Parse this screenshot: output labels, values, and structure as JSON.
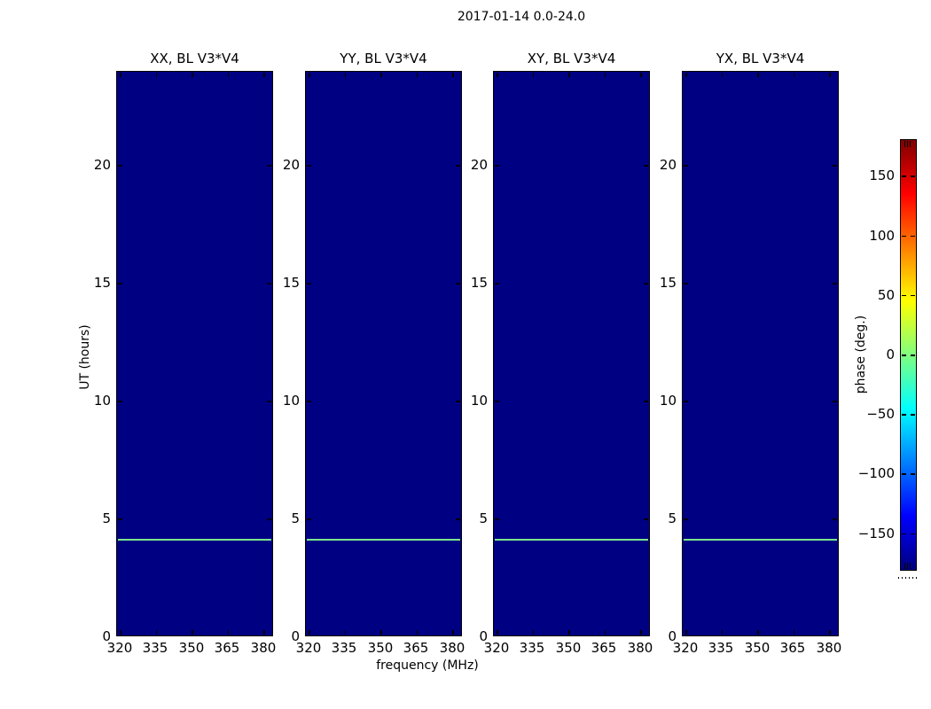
{
  "figure_title": "2017-01-14 0.0-24.0",
  "panels": [
    {
      "title": "XX, BL V3*V4"
    },
    {
      "title": "YY, BL V3*V4"
    },
    {
      "title": "XY, BL V3*V4"
    },
    {
      "title": "YX, BL V3*V4"
    }
  ],
  "axes": {
    "xlabel": "frequency (MHz)",
    "ylabel": "UT (hours)",
    "x_tick_labels": [
      "320",
      "335",
      "350",
      "365",
      "380"
    ],
    "y_tick_labels_desc": [
      "20",
      "15",
      "10",
      "5",
      "0"
    ]
  },
  "colorbar": {
    "label": "phase (deg.)",
    "tick_labels": [
      "150",
      "100",
      "50",
      "0",
      "−50",
      "−100",
      "−150"
    ],
    "colormap": "jet",
    "min_color": "#000080",
    "max_color": "#800000"
  },
  "colors": {
    "background": "#ffffff",
    "panel_fill": "#000082",
    "stripe": "#7de68c",
    "text": "#000000"
  },
  "chart_data": {
    "type": "heatmap",
    "title": "2017-01-14 0.0-24.0",
    "panel_titles": [
      "XX, BL V3*V4",
      "YY, BL V3*V4",
      "XY, BL V3*V4",
      "YX, BL V3*V4"
    ],
    "xlabel": "frequency (MHz)",
    "ylabel": "UT (hours)",
    "x_ticks": [
      320,
      335,
      350,
      365,
      380
    ],
    "x_range": [
      318.7,
      384.2
    ],
    "y_ticks": [
      0,
      5,
      10,
      15,
      20
    ],
    "y_range": [
      0,
      24
    ],
    "grid": false,
    "colorbar": {
      "label": "phase (deg.)",
      "ticks": [
        150,
        100,
        50,
        0,
        -50,
        -100,
        -150
      ],
      "range": [
        -180,
        180
      ],
      "colormap": "jet",
      "position": "right"
    },
    "series_description": "All four polarization panels (XX, YY, XY, YX for baseline V3*V4) show uniform phase near -180 deg (dark navy, jet minimum). A single thin horizontal stripe of phase near 0 deg (light green, jet mid-scale) crosses every panel at UT ~ 4.1 hours spanning the full 320-380 MHz band.",
    "stripe": {
      "ut_hours": 4.1,
      "phase_deg": 0
    }
  }
}
